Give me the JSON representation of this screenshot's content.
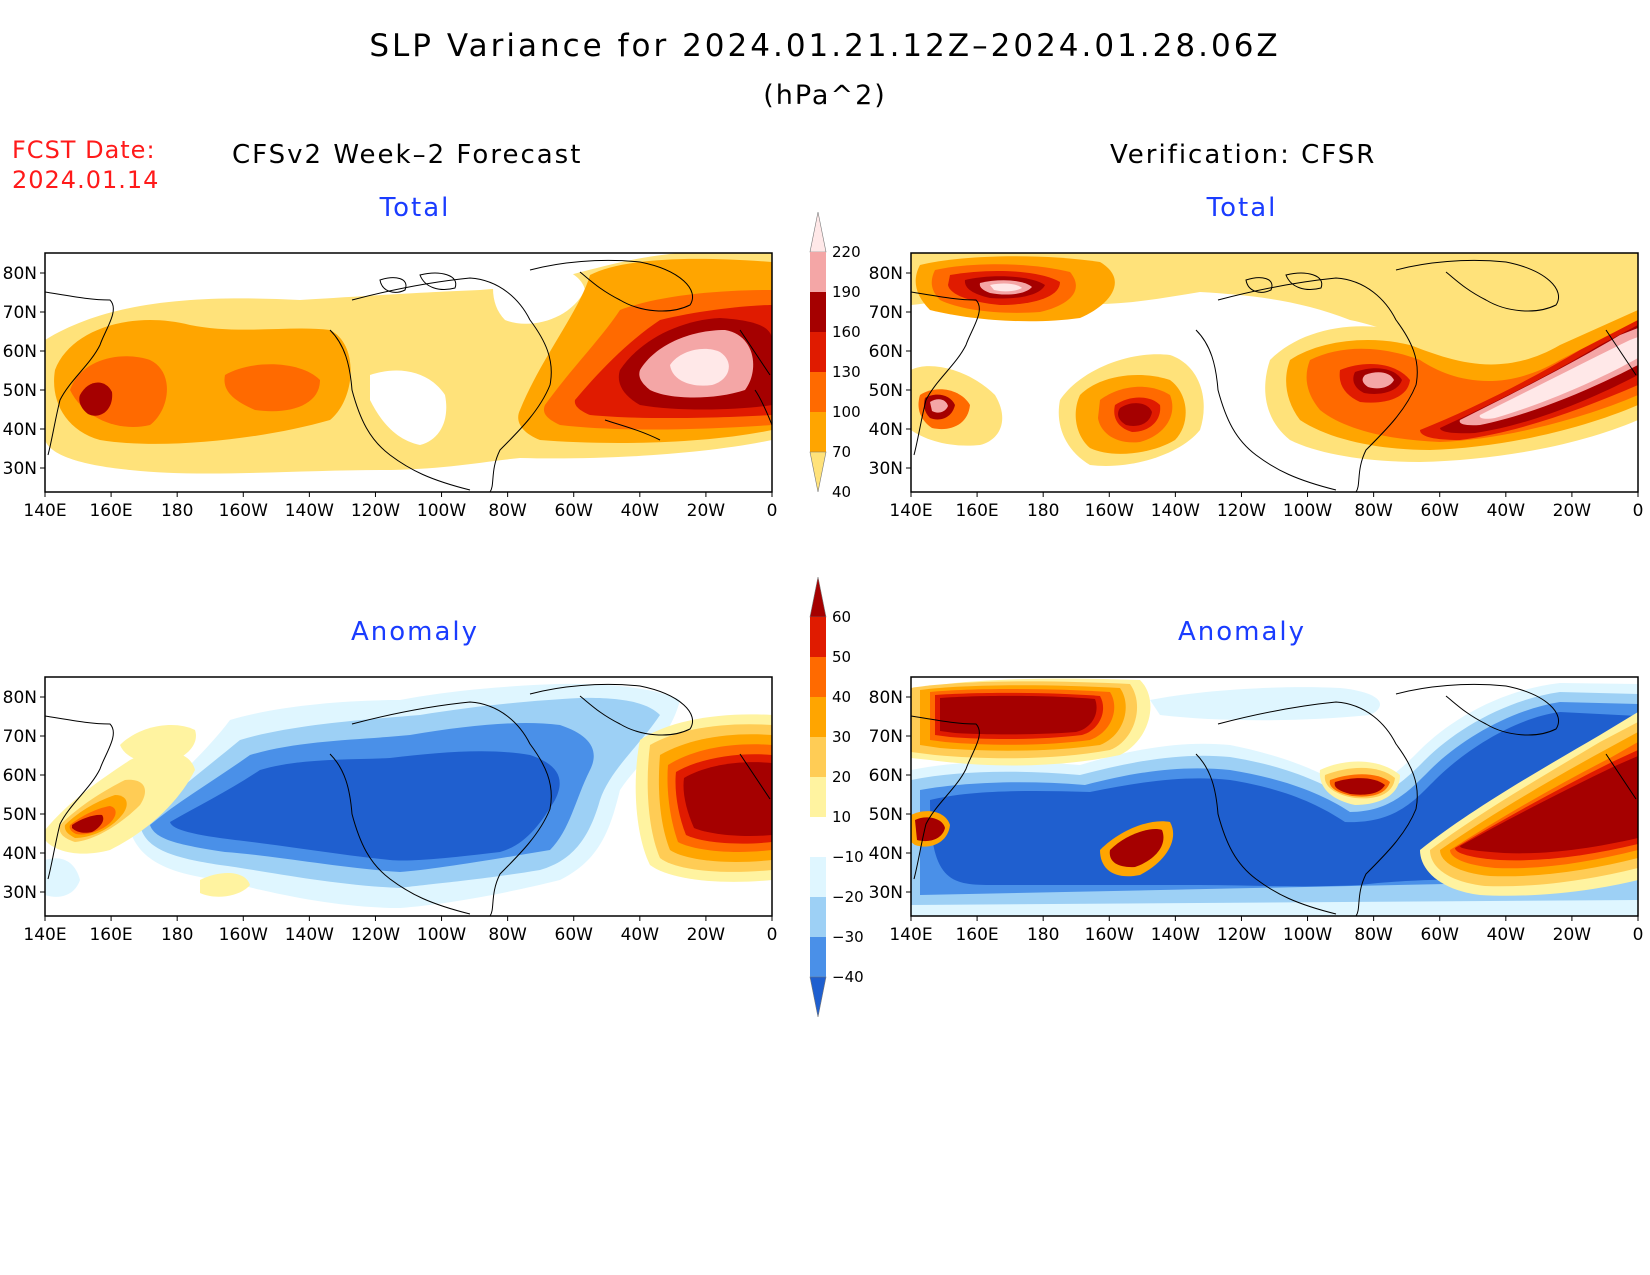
{
  "header": {
    "title": "SLP Variance for 2024.01.21.12Z–2024.01.28.06Z",
    "units": "(hPa^2)",
    "fcst_label": "FCST Date:",
    "fcst_date": "2024.01.14",
    "left_title": "CFSv2 Week–2 Forecast",
    "right_title": "Verification: CFSR"
  },
  "panels": {
    "forecast_total": {
      "title": "Total"
    },
    "verif_total": {
      "title": "Total"
    },
    "forecast_anom": {
      "title": "Anomaly"
    },
    "verif_anom": {
      "title": "Anomaly"
    }
  },
  "axes": {
    "lon_labels": [
      "140E",
      "160E",
      "180",
      "160W",
      "140W",
      "120W",
      "100W",
      "80W",
      "60W",
      "40W",
      "20W",
      "0"
    ],
    "lat_labels": [
      "80N",
      "70N",
      "60N",
      "50N",
      "40N",
      "30N"
    ]
  },
  "colorbars": {
    "total": {
      "levels": [
        "220",
        "190",
        "160",
        "130",
        "100",
        "70",
        "40"
      ],
      "colors": [
        "#ffe8e8",
        "#f4a6a6",
        "#a50000",
        "#e01b00",
        "#ff6a00",
        "#ffa500",
        "#ffe27a"
      ]
    },
    "anomaly": {
      "levels": [
        "60",
        "50",
        "40",
        "30",
        "20",
        "10",
        "−10",
        "−20",
        "−30",
        "−40"
      ],
      "colors": [
        "#a50000",
        "#e01b00",
        "#ff6a00",
        "#ffa500",
        "#ffcc55",
        "#fff3a0",
        "#ffffff",
        "#dff6ff",
        "#9dd0f5",
        "#4a90e8",
        "#1f5fcf"
      ]
    }
  },
  "colors": {
    "total": {
      "c40": "#ffe27a",
      "c70": "#ffa500",
      "c100": "#ff6a00",
      "c130": "#e01b00",
      "c160": "#a50000",
      "c190": "#f4a6a6",
      "c220": "#ffe8e8"
    },
    "anomaly": {
      "p10": "#fff3a0",
      "p20": "#ffcc55",
      "p30": "#ffa500",
      "p40": "#ff6a00",
      "p50": "#e01b00",
      "p60": "#a50000",
      "n10": "#dff6ff",
      "n20": "#9dd0f5",
      "n30": "#4a90e8",
      "n40": "#1f5fcf"
    },
    "title_blue": "#1a3cff",
    "fcst_red": "#ff1a1a"
  }
}
